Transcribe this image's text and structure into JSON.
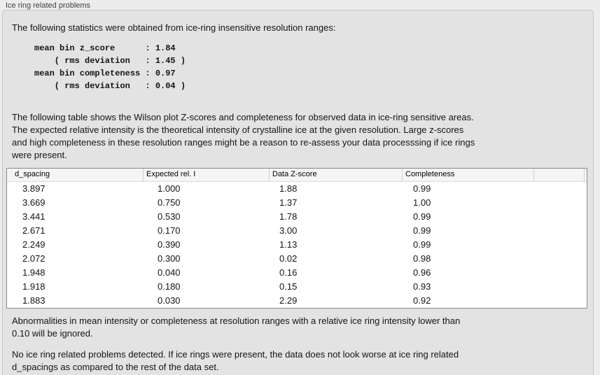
{
  "panel": {
    "title": "Ice ring related problems",
    "intro": "The following statistics were obtained from ice-ring insensitive resolution ranges:",
    "stats_block": "mean bin z_score      : 1.84\n    ( rms deviation   : 1.45 )\nmean bin completeness : 0.97\n    ( rms deviation   : 0.04 )",
    "stats": {
      "mean_bin_z_score": "1.84",
      "z_score_rms_deviation": "1.45",
      "mean_bin_completeness": "0.97",
      "completeness_rms_deviation": "0.04"
    },
    "description": "The following table shows the Wilson plot Z-scores and completeness for observed data in ice-ring sensitive areas.\nThe expected relative intensity is the theoretical intensity of crystalline ice at the given resolution. Large z-scores\nand high completeness in these resolution ranges might be a reason to re-assess your data processsing if ice rings\nwere present.",
    "table": {
      "columns": [
        "d_spacing",
        "Expected rel. I",
        "Data Z-score",
        "Completeness"
      ],
      "rows": [
        [
          "3.897",
          "1.000",
          "1.88",
          "0.99"
        ],
        [
          "3.669",
          "0.750",
          "1.37",
          "1.00"
        ],
        [
          "3.441",
          "0.530",
          "1.78",
          "0.99"
        ],
        [
          "2.671",
          "0.170",
          "3.00",
          "0.99"
        ],
        [
          "2.249",
          "0.390",
          "1.13",
          "0.99"
        ],
        [
          "2.072",
          "0.300",
          "0.02",
          "0.98"
        ],
        [
          "1.948",
          "0.040",
          "0.16",
          "0.96"
        ],
        [
          "1.918",
          "0.180",
          "0.15",
          "0.93"
        ],
        [
          "1.883",
          "0.030",
          "2.29",
          "0.92"
        ]
      ]
    },
    "note_ignore": "Abnormalities in mean intensity or completeness at resolution ranges with a relative ice ring intensity lower than\n0.10 will be ignored.",
    "conclusion": "No ice ring related problems detected. If ice rings were present, the data does not look worse at ice ring related\nd_spacings as compared to the rest of the data set."
  },
  "colors": {
    "page_bg": "#ececec",
    "box_bg": "#e3e3e3",
    "box_border": "#c6c6c6",
    "table_border": "#8a8a8a",
    "table_header_bg": "#f5f5f5",
    "header_separator": "#d0d0d0",
    "row_bg": "#ffffff",
    "text": "#141414",
    "title": "#3e3e3e"
  }
}
